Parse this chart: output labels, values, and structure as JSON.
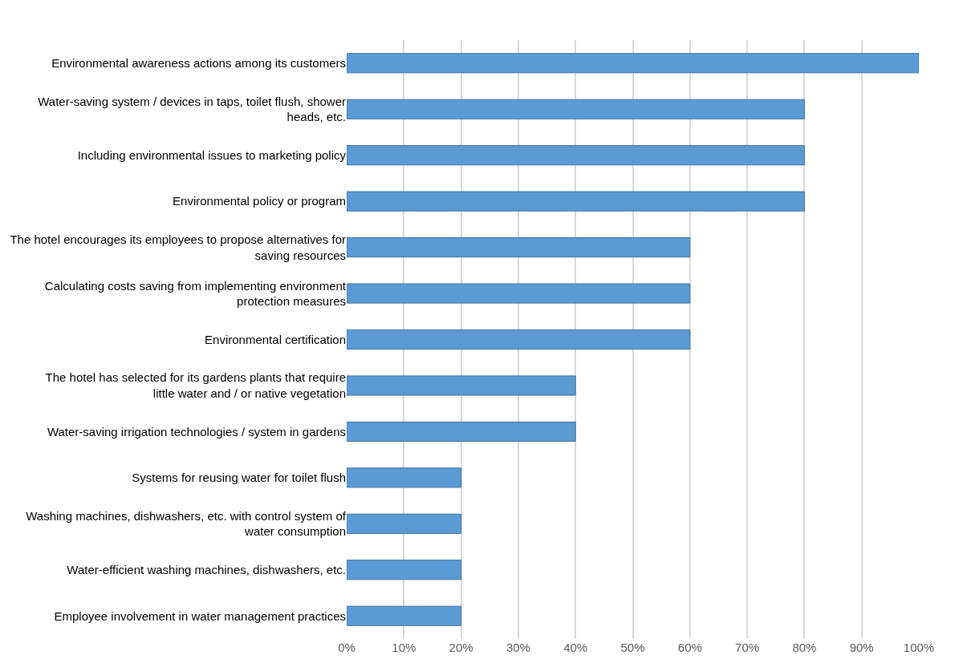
{
  "chart_data": {
    "type": "bar",
    "orientation": "horizontal",
    "categories": [
      "Environmental awareness actions among its customers",
      "Water-saving system / devices in taps, toilet flush, shower heads, etc.",
      "Including environmental issues to marketing policy",
      "Environmental policy or program",
      "The hotel encourages its employees to propose alternatives for saving resources",
      "Calculating costs saving from implementing environment protection measures",
      "Environmental certification",
      "The hotel has selected for its gardens plants that require little water and / or native vegetation",
      "Water-saving irrigation technologies / system in gardens",
      "Systems for reusing water for toilet flush",
      "Washing machines, dishwashers, etc. with control system of water consumption",
      "Water-efficient washing machines, dishwashers, etc.",
      "Employee involvement in water management practices"
    ],
    "values": [
      100,
      80,
      80,
      80,
      60,
      60,
      60,
      40,
      40,
      20,
      20,
      20,
      20
    ],
    "color": "#5b9bd5",
    "xlim": [
      0,
      100
    ],
    "xticks": [
      {
        "value": 0,
        "label": "0%"
      },
      {
        "value": 10,
        "label": "10%"
      },
      {
        "value": 20,
        "label": "20%"
      },
      {
        "value": 30,
        "label": "30%"
      },
      {
        "value": 40,
        "label": "40%"
      },
      {
        "value": 50,
        "label": "50%"
      },
      {
        "value": 60,
        "label": "60%"
      },
      {
        "value": 70,
        "label": "70%"
      },
      {
        "value": 80,
        "label": "80%"
      },
      {
        "value": 90,
        "label": "90%"
      },
      {
        "value": 100,
        "label": "100%"
      }
    ],
    "grid": "x"
  }
}
